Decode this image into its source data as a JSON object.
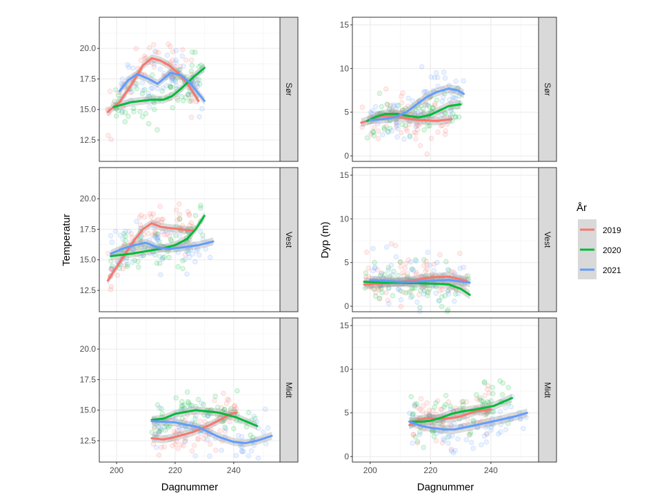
{
  "chart_data": {
    "type": "line",
    "facet_rows": [
      "Sør",
      "Vest",
      "Midt"
    ],
    "xlabel": "Dagnummer",
    "xlim": [
      194.1,
      255.8
    ],
    "x_ticks": [
      "200",
      "220",
      "240"
    ],
    "legend": {
      "title": "År",
      "placement": "right",
      "entries": [
        "2019",
        "2020",
        "2021"
      ]
    },
    "colors": {
      "2019": "#F8766D",
      "2020": "#00BA38",
      "2021": "#619CFF"
    },
    "grid": true,
    "panels_left": {
      "ylabel": "Temperatur",
      "ylim": [
        10.75,
        22.55
      ],
      "y_ticks": [
        "12.5",
        "15.0",
        "17.5",
        "20.0"
      ],
      "facets": [
        {
          "row": "Sør",
          "series": [
            {
              "name": "2019",
              "points": [
                [
                  197,
                  14.8
                ],
                [
                  201,
                  15.6
                ],
                [
                  205,
                  17.0
                ],
                [
                  209,
                  18.6
                ],
                [
                  212,
                  19.2
                ],
                [
                  215,
                  19.0
                ],
                [
                  218,
                  18.6
                ],
                [
                  221,
                  18.0
                ],
                [
                  224,
                  17.2
                ],
                [
                  228,
                  15.7
                ]
              ]
            },
            {
              "name": "2020",
              "points": [
                [
                  199,
                  15.2
                ],
                [
                  205,
                  15.6
                ],
                [
                  212,
                  15.8
                ],
                [
                  216,
                  15.8
                ],
                [
                  219,
                  16.1
                ],
                [
                  222,
                  16.7
                ],
                [
                  226,
                  17.6
                ],
                [
                  230,
                  18.4
                ]
              ]
            },
            {
              "name": "2021",
              "points": [
                [
                  201,
                  16.5
                ],
                [
                  204,
                  17.4
                ],
                [
                  207,
                  17.9
                ],
                [
                  211,
                  17.5
                ],
                [
                  214,
                  17.1
                ],
                [
                  216,
                  17.5
                ],
                [
                  218.5,
                  18.0
                ],
                [
                  222,
                  17.8
                ],
                [
                  225,
                  17.2
                ],
                [
                  230,
                  15.7
                ]
              ]
            }
          ]
        },
        {
          "row": "Vest",
          "series": [
            {
              "name": "2019",
              "points": [
                [
                  197,
                  13.3
                ],
                [
                  200,
                  14.4
                ],
                [
                  203,
                  15.5
                ],
                [
                  206,
                  16.6
                ],
                [
                  209,
                  17.5
                ],
                [
                  212,
                  18.0
                ],
                [
                  215,
                  17.7
                ],
                [
                  218,
                  17.6
                ],
                [
                  222,
                  17.5
                ],
                [
                  226,
                  17.4
                ]
              ]
            },
            {
              "name": "2020",
              "points": [
                [
                  198,
                  15.3
                ],
                [
                  205,
                  15.5
                ],
                [
                  210,
                  15.7
                ],
                [
                  215,
                  15.9
                ],
                [
                  220,
                  16.2
                ],
                [
                  224,
                  16.7
                ],
                [
                  227,
                  17.5
                ],
                [
                  230,
                  18.6
                ]
              ]
            },
            {
              "name": "2021",
              "points": [
                [
                  198,
                  15.5
                ],
                [
                  202,
                  15.9
                ],
                [
                  206,
                  16.2
                ],
                [
                  210,
                  16.4
                ],
                [
                  214,
                  16.0
                ],
                [
                  218,
                  15.9
                ],
                [
                  222,
                  16.0
                ],
                [
                  228,
                  16.2
                ],
                [
                  233,
                  16.5
                ]
              ]
            }
          ]
        },
        {
          "row": "Midt",
          "series": [
            {
              "name": "2019",
              "points": [
                [
                  212,
                  12.7
                ],
                [
                  216,
                  12.6
                ],
                [
                  220,
                  12.8
                ],
                [
                  226,
                  13.2
                ],
                [
                  232,
                  13.8
                ],
                [
                  236,
                  14.3
                ],
                [
                  239,
                  14.7
                ],
                [
                  241,
                  14.8
                ]
              ]
            },
            {
              "name": "2020",
              "points": [
                [
                  212,
                  14.2
                ],
                [
                  216,
                  14.3
                ],
                [
                  220,
                  14.7
                ],
                [
                  227,
                  15.0
                ],
                [
                  235,
                  14.8
                ],
                [
                  241,
                  14.4
                ],
                [
                  248,
                  13.7
                ]
              ]
            },
            {
              "name": "2021",
              "points": [
                [
                  212,
                  14.1
                ],
                [
                  220,
                  14.0
                ],
                [
                  228,
                  13.6
                ],
                [
                  235,
                  12.8
                ],
                [
                  240,
                  12.4
                ],
                [
                  244,
                  12.3
                ],
                [
                  248,
                  12.5
                ],
                [
                  253,
                  12.9
                ]
              ]
            }
          ]
        }
      ]
    },
    "panels_right": {
      "ylabel": "Dyp (m)",
      "ylim": [
        -0.63,
        15.87
      ],
      "y_ticks": [
        "0",
        "5",
        "10",
        "15"
      ],
      "facets": [
        {
          "row": "Sør",
          "series": [
            {
              "name": "2019",
              "points": [
                [
                  197,
                  3.8
                ],
                [
                  200,
                  4.1
                ],
                [
                  203,
                  4.5
                ],
                [
                  207,
                  4.6
                ],
                [
                  210,
                  4.4
                ],
                [
                  216,
                  4.1
                ],
                [
                  222,
                  4.0
                ],
                [
                  227,
                  4.2
                ]
              ]
            },
            {
              "name": "2020",
              "points": [
                [
                  199,
                  4.0
                ],
                [
                  202,
                  4.5
                ],
                [
                  205,
                  4.8
                ],
                [
                  209,
                  4.8
                ],
                [
                  212,
                  4.6
                ],
                [
                  216,
                  4.4
                ],
                [
                  220,
                  4.7
                ],
                [
                  223,
                  5.2
                ],
                [
                  226,
                  5.7
                ],
                [
                  230,
                  5.9
                ]
              ]
            },
            {
              "name": "2021",
              "points": [
                [
                  200,
                  4.1
                ],
                [
                  204,
                  4.2
                ],
                [
                  208,
                  4.4
                ],
                [
                  212,
                  5.0
                ],
                [
                  215,
                  5.8
                ],
                [
                  219,
                  6.8
                ],
                [
                  222,
                  7.3
                ],
                [
                  226,
                  7.7
                ],
                [
                  229,
                  7.5
                ],
                [
                  231,
                  7.1
                ]
              ]
            }
          ]
        },
        {
          "row": "Vest",
          "series": [
            {
              "name": "2019",
              "points": [
                [
                  198,
                  2.5
                ],
                [
                  204,
                  2.6
                ],
                [
                  210,
                  2.8
                ],
                [
                  215,
                  3.0
                ],
                [
                  220,
                  3.3
                ],
                [
                  226,
                  3.4
                ],
                [
                  232,
                  2.9
                ]
              ]
            },
            {
              "name": "2020",
              "points": [
                [
                  198,
                  2.8
                ],
                [
                  204,
                  2.7
                ],
                [
                  210,
                  2.7
                ],
                [
                  220,
                  2.6
                ],
                [
                  226,
                  2.5
                ],
                [
                  230,
                  2.0
                ],
                [
                  233,
                  1.3
                ]
              ]
            },
            {
              "name": "2021",
              "points": [
                [
                  200,
                  3.0
                ],
                [
                  205,
                  2.9
                ],
                [
                  210,
                  2.8
                ],
                [
                  215,
                  2.8
                ],
                [
                  220,
                  2.9
                ],
                [
                  226,
                  3.0
                ],
                [
                  233,
                  2.7
                ]
              ]
            }
          ]
        },
        {
          "row": "Midt",
          "series": [
            {
              "name": "2019",
              "points": [
                [
                  213,
                  3.6
                ],
                [
                  216,
                  4.2
                ],
                [
                  219,
                  4.4
                ],
                [
                  223,
                  4.3
                ],
                [
                  227,
                  4.4
                ],
                [
                  230,
                  4.6
                ],
                [
                  235,
                  5.2
                ],
                [
                  240,
                  5.4
                ]
              ]
            },
            {
              "name": "2020",
              "points": [
                [
                  213,
                  4.0
                ],
                [
                  217,
                  4.0
                ],
                [
                  220,
                  4.1
                ],
                [
                  224,
                  4.5
                ],
                [
                  227,
                  4.9
                ],
                [
                  231,
                  5.2
                ],
                [
                  235,
                  5.4
                ],
                [
                  241,
                  5.8
                ],
                [
                  247,
                  6.7
                ]
              ]
            },
            {
              "name": "2021",
              "points": [
                [
                  213,
                  4.0
                ],
                [
                  217,
                  3.5
                ],
                [
                  220,
                  3.3
                ],
                [
                  225,
                  3.1
                ],
                [
                  228,
                  3.1
                ],
                [
                  235,
                  3.6
                ],
                [
                  243,
                  4.2
                ],
                [
                  248,
                  4.6
                ],
                [
                  252,
                  5.0
                ]
              ]
            }
          ]
        }
      ]
    }
  }
}
